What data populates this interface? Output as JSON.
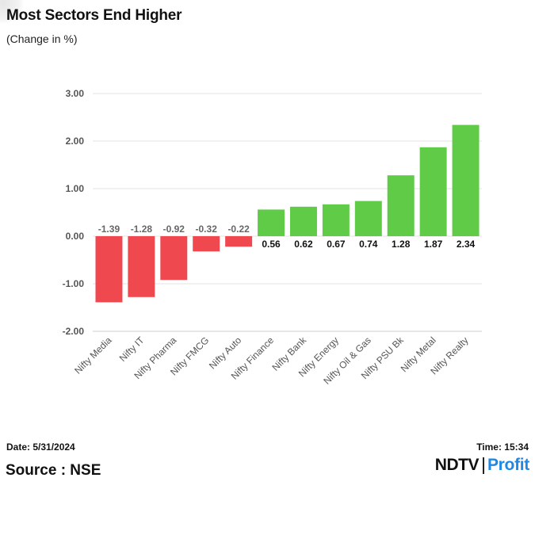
{
  "title": "Most Sectors End Higher",
  "subtitle": "(Change in %)",
  "chart_data": {
    "type": "bar",
    "title": "Most Sectors End Higher",
    "subtitle": "(Change in %)",
    "categories": [
      "Nifty Media",
      "Nifty IT",
      "Nifty Pharma",
      "Nifty FMCG",
      "Nifty Auto",
      "Nifty Finance",
      "Nifty Bank",
      "Nifty Energy",
      "Nifty Oil & Gas",
      "Nifty PSU Bk",
      "Nifty Metal",
      "Nifty Realty"
    ],
    "values": [
      -1.39,
      -1.28,
      -0.92,
      -0.32,
      -0.22,
      0.56,
      0.62,
      0.67,
      0.74,
      1.28,
      1.87,
      2.34
    ],
    "data_labels": [
      "-1.39",
      "-1.28",
      "-0.92",
      "-0.32",
      "-0.22",
      "0.56",
      "0.62",
      "0.67",
      "0.74",
      "1.28",
      "1.87",
      "2.34"
    ],
    "ylim": [
      -2,
      3
    ],
    "yticks": [
      3,
      2,
      1,
      0,
      -1,
      -2
    ],
    "ytick_labels": [
      "3.00",
      "2.00",
      "1.00",
      "0.00",
      "-1.00",
      "-2.00"
    ],
    "xlabel": "",
    "ylabel": "",
    "grid": true,
    "legend": false,
    "colors": {
      "positive": "#5fcb47",
      "negative": "#f0484f"
    }
  },
  "footer": {
    "date": "Date: 5/31/2024",
    "time": "Time: 15:34",
    "source": "Source : NSE"
  },
  "brand": {
    "ndtv": "NDTV",
    "profit": "Profit",
    "accent": "#1e88e5"
  }
}
